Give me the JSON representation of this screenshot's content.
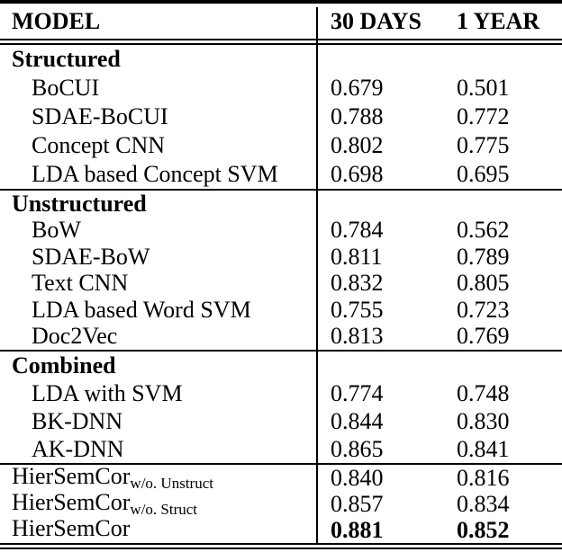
{
  "page": {
    "background": "#ffffff",
    "text_color": "#000000"
  },
  "table": {
    "header": {
      "model": "MODEL",
      "days30": "30 DAYS",
      "year1": "1 YEAR"
    },
    "sections": [
      {
        "label": "Structured",
        "rows": [
          {
            "model": "BoCUI",
            "days30": "0.679",
            "year1": "0.501"
          },
          {
            "model": "SDAE-BoCUI",
            "days30": "0.788",
            "year1": "0.772"
          },
          {
            "model": "Concept CNN",
            "days30": "0.802",
            "year1": "0.775"
          },
          {
            "model": "LDA based Concept SVM",
            "days30": "0.698",
            "year1": "0.695"
          }
        ]
      },
      {
        "label": "Unstructured",
        "rows": [
          {
            "model": "BoW",
            "days30": "0.784",
            "year1": "0.562"
          },
          {
            "model": "SDAE-BoW",
            "days30": "0.811",
            "year1": "0.789"
          },
          {
            "model": "Text CNN",
            "days30": "0.832",
            "year1": "0.805"
          },
          {
            "model": "LDA based Word SVM",
            "days30": "0.755",
            "year1": "0.723"
          },
          {
            "model": "Doc2Vec",
            "days30": "0.813",
            "year1": "0.769"
          }
        ]
      },
      {
        "label": "Combined",
        "rows": [
          {
            "model": "LDA with SVM",
            "days30": "0.774",
            "year1": "0.748"
          },
          {
            "model": "BK-DNN",
            "days30": "0.844",
            "year1": "0.830"
          },
          {
            "model": "AK-DNN",
            "days30": "0.865",
            "year1": "0.841"
          }
        ]
      }
    ],
    "summary": [
      {
        "model": "HierSemCor",
        "subscript": "w/o. Unstruct",
        "days30": "0.840",
        "year1": "0.816",
        "bold": false
      },
      {
        "model": "HierSemCor",
        "subscript": "w/o. Struct",
        "days30": "0.857",
        "year1": "0.834",
        "bold": false
      },
      {
        "model": "HierSemCor",
        "subscript": "",
        "days30": "0.881",
        "year1": "0.852",
        "bold": true
      }
    ]
  }
}
